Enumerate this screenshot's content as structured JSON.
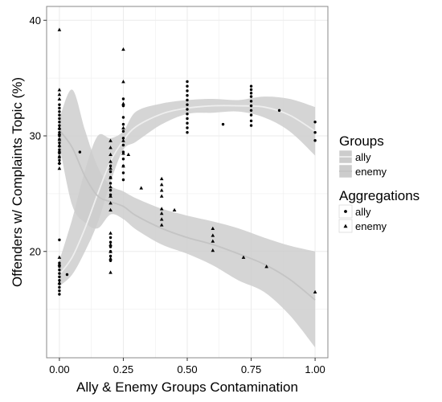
{
  "chart_data": {
    "type": "scatter",
    "xlabel": "Ally & Enemy Groups Contamination",
    "ylabel": "Offenders w/ Complaints Topic (%)",
    "xlim": [
      -0.05,
      1.05
    ],
    "ylim": [
      10.8,
      41.2
    ],
    "xticks": [
      0,
      0.25,
      0.5,
      0.75,
      1.0
    ],
    "xtick_labels": [
      "0.00",
      "0.25",
      "0.50",
      "0.75",
      "1.00"
    ],
    "yticks": [
      20,
      30,
      40
    ],
    "ytick_labels": [
      "20",
      "30",
      "40"
    ],
    "grid": true,
    "legend_position": "right",
    "colors": {
      "band": "#cccccc",
      "ally_line": "#eeeeee",
      "enemy_line": "#c4c4c4",
      "points": "#000000",
      "panel_border": "#888888",
      "grid": "#ebebeb"
    },
    "legends": [
      {
        "title": "Groups",
        "entries": [
          "ally",
          "enemy"
        ]
      },
      {
        "title": "Aggregations",
        "entries": [
          "ally",
          "enemy"
        ]
      }
    ],
    "series": [
      {
        "name": "ally",
        "marker": "circle",
        "points": [
          [
            0,
            32.7
          ],
          [
            0,
            32.4
          ],
          [
            0,
            32.1
          ],
          [
            0,
            31.8
          ],
          [
            0,
            31.5
          ],
          [
            0,
            31.2
          ],
          [
            0,
            30.9
          ],
          [
            0,
            30.6
          ],
          [
            0,
            30.3
          ],
          [
            0,
            30.0
          ],
          [
            0,
            29.7
          ],
          [
            0,
            29.4
          ],
          [
            0,
            29.1
          ],
          [
            0,
            28.8
          ],
          [
            0,
            28.5
          ],
          [
            0,
            28.2
          ],
          [
            0,
            27.9
          ],
          [
            0,
            27.6
          ],
          [
            0,
            21.0
          ],
          [
            0,
            19.0
          ],
          [
            0,
            18.7
          ],
          [
            0,
            18.4
          ],
          [
            0,
            18.1
          ],
          [
            0,
            17.8
          ],
          [
            0,
            17.5
          ],
          [
            0,
            17.2
          ],
          [
            0,
            16.9
          ],
          [
            0,
            16.6
          ],
          [
            0,
            16.3
          ],
          [
            0.03,
            18.0
          ],
          [
            0.08,
            28.6
          ],
          [
            0.2,
            27.4
          ],
          [
            0.2,
            26.9
          ],
          [
            0.2,
            26.4
          ],
          [
            0.2,
            25.9
          ],
          [
            0.2,
            25.3
          ],
          [
            0.2,
            24.9
          ],
          [
            0.2,
            21.2
          ],
          [
            0.2,
            20.8
          ],
          [
            0.2,
            20.4
          ],
          [
            0.2,
            20.0
          ],
          [
            0.2,
            19.6
          ],
          [
            0.2,
            19.2
          ],
          [
            0.25,
            33.2
          ],
          [
            0.25,
            32.6
          ],
          [
            0.25,
            31.6
          ],
          [
            0.25,
            31.0
          ],
          [
            0.25,
            30.4
          ],
          [
            0.25,
            29.8
          ],
          [
            0.25,
            29.2
          ],
          [
            0.25,
            28.6
          ],
          [
            0.25,
            28.0
          ],
          [
            0.25,
            27.4
          ],
          [
            0.25,
            26.8
          ],
          [
            0.25,
            26.2
          ],
          [
            0.5,
            34.7
          ],
          [
            0.5,
            34.3
          ],
          [
            0.5,
            33.9
          ],
          [
            0.5,
            33.5
          ],
          [
            0.5,
            33.1
          ],
          [
            0.5,
            32.7
          ],
          [
            0.5,
            32.3
          ],
          [
            0.5,
            31.9
          ],
          [
            0.5,
            31.5
          ],
          [
            0.5,
            31.1
          ],
          [
            0.5,
            30.7
          ],
          [
            0.5,
            30.3
          ],
          [
            0.64,
            31.0
          ],
          [
            0.75,
            34.3
          ],
          [
            0.75,
            34.0
          ],
          [
            0.75,
            33.7
          ],
          [
            0.75,
            33.4
          ],
          [
            0.75,
            33.0
          ],
          [
            0.75,
            32.6
          ],
          [
            0.75,
            32.2
          ],
          [
            0.75,
            31.8
          ],
          [
            0.75,
            31.3
          ],
          [
            0.75,
            30.9
          ],
          [
            0.86,
            32.2
          ],
          [
            1.0,
            31.2
          ],
          [
            1.0,
            30.3
          ],
          [
            1.0,
            29.6
          ]
        ]
      },
      {
        "name": "enemy",
        "marker": "triangle",
        "points": [
          [
            0,
            39.2
          ],
          [
            0,
            34.0
          ],
          [
            0,
            33.6
          ],
          [
            0,
            33.2
          ],
          [
            0,
            30.7
          ],
          [
            0,
            30.2
          ],
          [
            0,
            29.7
          ],
          [
            0,
            29.2
          ],
          [
            0,
            28.7
          ],
          [
            0,
            28.2
          ],
          [
            0,
            27.7
          ],
          [
            0,
            27.2
          ],
          [
            0,
            19.5
          ],
          [
            0,
            18.9
          ],
          [
            0,
            17.3
          ],
          [
            0.2,
            29.6
          ],
          [
            0.2,
            29.0
          ],
          [
            0.2,
            28.4
          ],
          [
            0.2,
            27.8
          ],
          [
            0.2,
            27.2
          ],
          [
            0.2,
            26.4
          ],
          [
            0.2,
            25.6
          ],
          [
            0.2,
            24.8
          ],
          [
            0.2,
            24.2
          ],
          [
            0.2,
            23.6
          ],
          [
            0.2,
            21.6
          ],
          [
            0.2,
            20.6
          ],
          [
            0.2,
            20.0
          ],
          [
            0.2,
            19.4
          ],
          [
            0.2,
            18.2
          ],
          [
            0.25,
            37.5
          ],
          [
            0.25,
            34.7
          ],
          [
            0.25,
            32.8
          ],
          [
            0.25,
            30.7
          ],
          [
            0.25,
            29.6
          ],
          [
            0.25,
            28.5
          ],
          [
            0.25,
            27.4
          ],
          [
            0.27,
            28.4
          ],
          [
            0.32,
            25.5
          ],
          [
            0.4,
            26.3
          ],
          [
            0.4,
            25.8
          ],
          [
            0.4,
            25.3
          ],
          [
            0.4,
            24.8
          ],
          [
            0.4,
            23.7
          ],
          [
            0.4,
            23.3
          ],
          [
            0.4,
            22.8
          ],
          [
            0.4,
            22.3
          ],
          [
            0.45,
            23.6
          ],
          [
            0.6,
            22.0
          ],
          [
            0.6,
            21.4
          ],
          [
            0.6,
            20.9
          ],
          [
            0.6,
            20.1
          ],
          [
            0.72,
            19.5
          ],
          [
            0.81,
            18.7
          ],
          [
            1.0,
            16.5
          ]
        ]
      }
    ],
    "smooth": [
      {
        "name": "ally",
        "x": [
          0.0,
          0.05,
          0.1,
          0.15,
          0.2,
          0.25,
          0.3,
          0.4,
          0.5,
          0.6,
          0.7,
          0.8,
          0.9,
          1.0
        ],
        "y": [
          18.0,
          19.5,
          22.0,
          25.0,
          27.8,
          29.6,
          30.8,
          31.9,
          32.4,
          32.6,
          32.6,
          32.5,
          31.8,
          30.4
        ],
        "lower": [
          17.0,
          18.0,
          20.0,
          22.5,
          26.0,
          28.8,
          29.5,
          31.0,
          31.9,
          32.0,
          32.1,
          31.6,
          30.4,
          28.3
        ],
        "upper": [
          19.2,
          22.8,
          27.0,
          30.0,
          29.8,
          30.4,
          32.1,
          32.8,
          33.1,
          33.2,
          33.1,
          33.4,
          33.2,
          32.5
        ]
      },
      {
        "name": "enemy",
        "x": [
          0.0,
          0.05,
          0.1,
          0.15,
          0.2,
          0.25,
          0.3,
          0.4,
          0.5,
          0.6,
          0.7,
          0.8,
          0.9,
          1.0
        ],
        "y": [
          30.5,
          29.0,
          26.5,
          24.8,
          24.3,
          23.9,
          23.1,
          22.0,
          21.2,
          20.6,
          19.8,
          18.9,
          17.6,
          15.8
        ],
        "lower": [
          29.2,
          24.0,
          22.5,
          22.0,
          23.2,
          22.8,
          21.9,
          20.6,
          19.8,
          18.8,
          17.5,
          16.5,
          14.5,
          11.7
        ],
        "upper": [
          31.5,
          34.0,
          30.5,
          27.3,
          25.7,
          25.2,
          24.6,
          23.7,
          23.1,
          22.6,
          22.0,
          21.2,
          20.5,
          20.0
        ]
      }
    ]
  }
}
